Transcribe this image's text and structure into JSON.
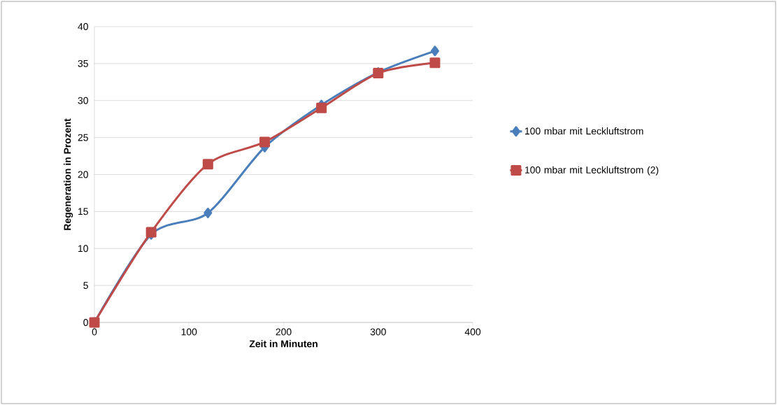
{
  "chart_data": {
    "type": "line",
    "xlabel": "Zeit in Minuten",
    "ylabel": "Regeneration in Prozent",
    "x": [
      0,
      60,
      120,
      180,
      240,
      300,
      360
    ],
    "series": [
      {
        "name": "100 mbar mit Leckluftstrom",
        "color": "#4a7ebb",
        "marker": "diamond",
        "values": [
          0,
          11.9,
          14.8,
          23.7,
          29.4,
          33.8,
          36.7
        ]
      },
      {
        "name": "100 mbar mit Leckluftstrom (2)",
        "color": "#be4b48",
        "marker": "square",
        "values": [
          0,
          12.2,
          21.4,
          24.4,
          29.0,
          33.7,
          35.1
        ]
      }
    ],
    "xlim": [
      0,
      400
    ],
    "xticks": [
      0,
      100,
      200,
      300,
      400
    ],
    "ylim": [
      0,
      40
    ],
    "yticks": [
      0,
      5,
      10,
      15,
      20,
      25,
      30,
      35,
      40
    ],
    "grid": "y",
    "legend": "right",
    "line_style": "solid"
  }
}
